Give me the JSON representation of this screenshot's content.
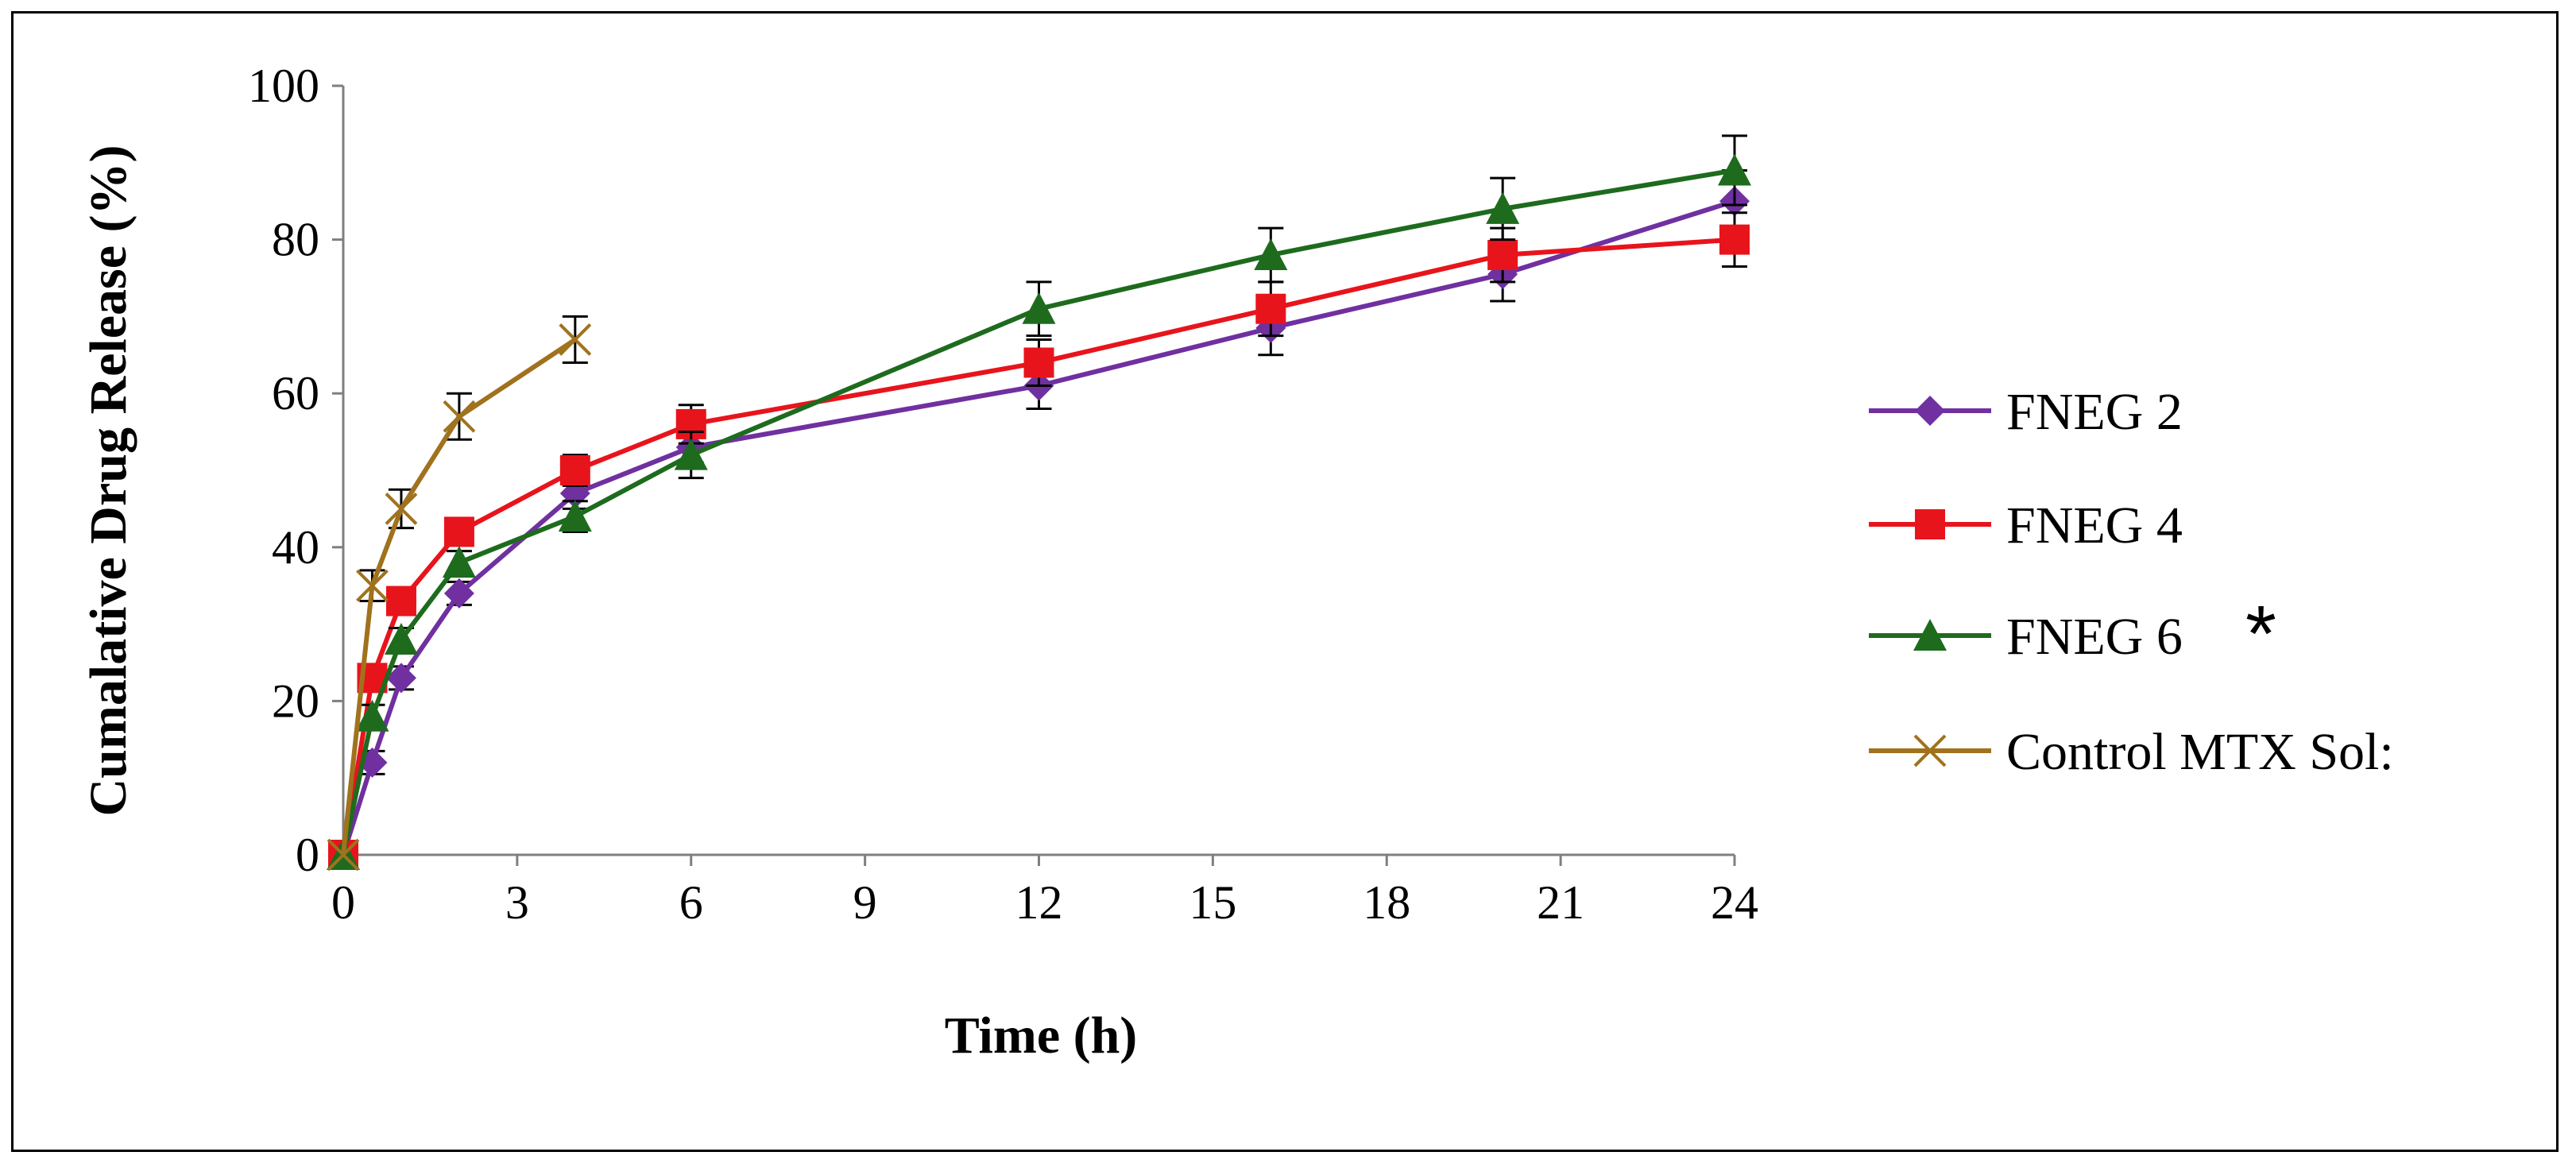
{
  "chart_data": {
    "type": "line",
    "title": "",
    "xlabel": "Time (h)",
    "ylabel": "Cumalative  Drug Release (%)",
    "xlim": [
      0,
      24
    ],
    "ylim": [
      0,
      100
    ],
    "xticks": [
      0,
      3,
      6,
      9,
      12,
      15,
      18,
      21,
      24
    ],
    "yticks": [
      0,
      20,
      40,
      60,
      80,
      100
    ],
    "grid": false,
    "legend_position": "right",
    "series": [
      {
        "name": "FNEG 2",
        "marker": "diamond",
        "color": "#7030A0",
        "x": [
          0,
          0.5,
          1,
          2,
          4,
          6,
          12,
          16,
          20,
          24
        ],
        "y": [
          0,
          12,
          23,
          34,
          47,
          53,
          61,
          68.5,
          75.5,
          85
        ],
        "err": [
          0,
          1.5,
          1.5,
          1.5,
          2,
          2,
          3,
          3.5,
          3.5,
          4
        ]
      },
      {
        "name": "FNEG 4",
        "marker": "square",
        "color": "#E8141C",
        "x": [
          0,
          0.5,
          1,
          2,
          4,
          6,
          12,
          16,
          20,
          24
        ],
        "y": [
          0,
          23,
          33,
          42,
          50,
          56,
          64,
          71,
          78,
          80
        ],
        "err": [
          0,
          1.5,
          1.5,
          1.5,
          2,
          2.5,
          3,
          3.5,
          3.5,
          3.5
        ]
      },
      {
        "name": "FNEG 6",
        "marker": "triangle",
        "color": "#1E6B1E",
        "x": [
          0,
          0.5,
          1,
          2,
          4,
          6,
          12,
          16,
          20,
          24
        ],
        "y": [
          0,
          18,
          28,
          38,
          44,
          52,
          71,
          78,
          84,
          89
        ],
        "err": [
          0,
          1.5,
          1.5,
          1.5,
          2,
          3,
          3.5,
          3.5,
          4,
          4.5
        ]
      },
      {
        "name": "Control MTX Sol:",
        "marker": "x",
        "color": "#A0721E",
        "x": [
          0,
          0.5,
          1,
          2,
          4
        ],
        "y": [
          0,
          35,
          45,
          57,
          67
        ],
        "err": [
          0,
          2,
          2.5,
          3,
          3
        ]
      }
    ],
    "legend_annotation": {
      "series": "FNEG 6",
      "text": "*"
    }
  }
}
